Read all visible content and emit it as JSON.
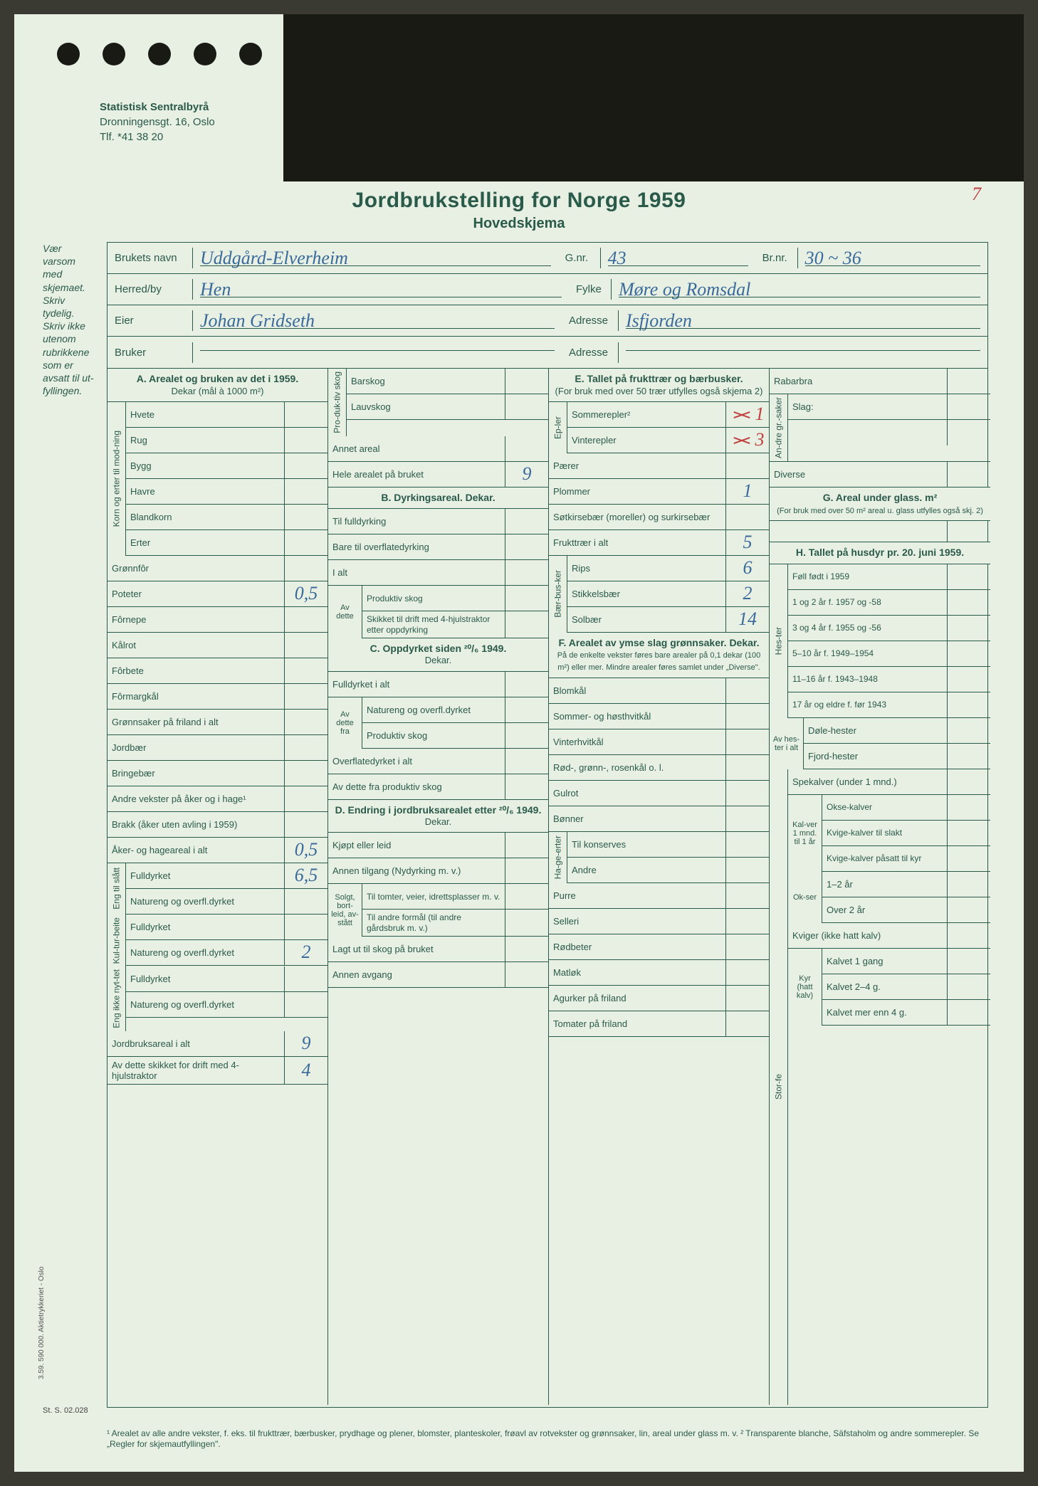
{
  "org": {
    "name": "Statistisk Sentralbyrå",
    "address": "Dronningensgt. 16, Oslo",
    "phone": "Tlf. *41 38 20"
  },
  "title": "Jordbrukstelling for Norge 1959",
  "subtitle": "Hovedskjema",
  "page_number": "7",
  "side_note": "Vær varsom med skjemaet.\nSkriv tydelig.\nSkriv ikke utenom rubrikkene som er avsatt til ut-fyllingen.",
  "header": {
    "brukets_navn_label": "Brukets navn",
    "brukets_navn": "Uddgård-Elverheim",
    "gnr_label": "G.nr.",
    "gnr": "43",
    "brnr_label": "Br.nr.",
    "brnr": "30 ~ 36",
    "herred_label": "Herred/by",
    "herred_strike": "by",
    "herred": "Hen",
    "fylke_label": "Fylke",
    "fylke": "Møre og Romsdal",
    "eier_label": "Eier",
    "eier": "Johan Gridseth",
    "adresse_label": "Adresse",
    "adresse": "Isfjorden",
    "bruker_label": "Bruker",
    "bruker": "",
    "adresse2_label": "Adresse",
    "adresse2": ""
  },
  "A": {
    "title": "A. Arealet og bruken av det i 1959.",
    "sub": "Dekar (mål à 1000 m²)",
    "korn_label": "Korn og erter til mod-ning",
    "rows": [
      {
        "l": "Hvete",
        "v": ""
      },
      {
        "l": "Rug",
        "v": ""
      },
      {
        "l": "Bygg",
        "v": ""
      },
      {
        "l": "Havre",
        "v": ""
      },
      {
        "l": "Blandkorn",
        "v": ""
      },
      {
        "l": "Erter",
        "v": ""
      }
    ],
    "rows2": [
      {
        "l": "Grønnfôr",
        "v": ""
      },
      {
        "l": "Poteter",
        "v": "0,5"
      },
      {
        "l": "Fôrnepe",
        "v": ""
      },
      {
        "l": "Kålrot",
        "v": ""
      },
      {
        "l": "Fôrbete",
        "v": ""
      },
      {
        "l": "Fôrmargkål",
        "v": ""
      },
      {
        "l": "Grønnsaker på friland i alt",
        "v": ""
      },
      {
        "l": "Jordbær",
        "v": ""
      },
      {
        "l": "Bringebær",
        "v": ""
      },
      {
        "l": "Andre vekster på åker og i hage¹",
        "v": ""
      },
      {
        "l": "Brakk (åker uten avling i 1959)",
        "v": ""
      },
      {
        "l": "Åker- og hageareal i alt",
        "v": "0,5"
      }
    ],
    "eng_label": "Eng til slått",
    "eng_rows": [
      {
        "l": "Fulldyrket",
        "v": "6,5"
      },
      {
        "l": "Natureng og overfl.dyrket",
        "v": ""
      }
    ],
    "kultur_label": "Kul-tur-beite",
    "kultur_rows": [
      {
        "l": "Fulldyrket",
        "v": ""
      },
      {
        "l": "Natureng og overfl.dyrket",
        "v": "2"
      }
    ],
    "engikke_label": "Eng ikke nyt-tet",
    "engikke_rows": [
      {
        "l": "Fulldyrket",
        "v": ""
      },
      {
        "l": "Natureng og overfl.dyrket",
        "v": ""
      }
    ],
    "total_rows": [
      {
        "l": "Jordbruksareal i alt",
        "v": "9"
      },
      {
        "l": "Av dette skikket for drift med 4-hjulstraktor",
        "v": "4"
      }
    ]
  },
  "col2": {
    "prod_label": "Pro-duk-tiv skog",
    "prod_rows": [
      {
        "l": "Barskog",
        "v": ""
      },
      {
        "l": "Lauvskog",
        "v": ""
      }
    ],
    "annet": {
      "l": "Annet areal",
      "v": ""
    },
    "hele": {
      "l": "Hele arealet på bruket",
      "v": "9"
    },
    "B_title": "B. Dyrkingsareal. Dekar.",
    "B_rows": [
      {
        "l": "Til fulldyrking",
        "v": ""
      },
      {
        "l": "Bare til overflatedyrking",
        "v": ""
      },
      {
        "l": "I alt",
        "v": ""
      }
    ],
    "avdette_label": "Av dette",
    "avdette_rows": [
      {
        "l": "Produktiv skog",
        "v": ""
      },
      {
        "l": "Skikket til drift med 4-hjulstraktor etter oppdyrking",
        "v": ""
      }
    ],
    "C_title": "C. Oppdyrket siden ²⁰/₆ 1949.",
    "C_sub": "Dekar.",
    "C_rows": [
      {
        "l": "Fulldyrket i alt",
        "v": ""
      }
    ],
    "C_avdette_label": "Av dette fra",
    "C_avdette_rows": [
      {
        "l": "Natureng og overfl.dyrket",
        "v": ""
      },
      {
        "l": "Produktiv skog",
        "v": ""
      }
    ],
    "C_rows2": [
      {
        "l": "Overflatedyrket i alt",
        "v": ""
      },
      {
        "l": "Av dette fra produktiv skog",
        "v": ""
      }
    ],
    "D_title": "D. Endring i jordbruksarealet etter ²⁰/₆ 1949.",
    "D_sub": "Dekar.",
    "D_rows": [
      {
        "l": "Kjøpt eller leid",
        "v": ""
      },
      {
        "l": "Annen tilgang (Nydyrking m. v.)",
        "v": ""
      }
    ],
    "solgt_label": "Solgt, bort-leid, av-stått",
    "solgt_rows": [
      {
        "l": "Til tomter, veier, idrettsplasser m. v.",
        "v": ""
      },
      {
        "l": "Til andre formål (til andre gårdsbruk m. v.)",
        "v": ""
      }
    ],
    "D_rows2": [
      {
        "l": "Lagt ut til skog på bruket",
        "v": ""
      },
      {
        "l": "Annen avgang",
        "v": ""
      }
    ]
  },
  "E": {
    "title": "E. Tallet på frukttrær og bærbusker.",
    "sub": "(For bruk med over 50 trær utfylles også skjema 2)",
    "epler_label": "Ep-ler",
    "epler_rows": [
      {
        "l": "Sommerepler²",
        "v": "1",
        "x": true
      },
      {
        "l": "Vinterepler",
        "v": "3",
        "x": true
      }
    ],
    "rows": [
      {
        "l": "Pærer",
        "v": ""
      },
      {
        "l": "Plommer",
        "v": "1"
      },
      {
        "l": "Søtkirsebær (moreller) og surkirsebær",
        "v": ""
      },
      {
        "l": "Frukttrær i alt",
        "v": "5"
      }
    ],
    "baer_label": "Bær-bus-ker",
    "baer_rows": [
      {
        "l": "Rips",
        "v": "6"
      },
      {
        "l": "Stikkelsbær",
        "v": "2"
      },
      {
        "l": "Solbær",
        "v": "14"
      }
    ]
  },
  "F": {
    "title": "F. Arealet av ymse slag grønnsaker. Dekar.",
    "sub": "På de enkelte vekster føres bare arealer på 0,1 dekar (100 m²) eller mer. Mindre arealer føres samlet under „Diverse\".",
    "rows": [
      {
        "l": "Blomkål",
        "v": ""
      },
      {
        "l": "Sommer- og høsthvitkål",
        "v": ""
      },
      {
        "l": "Vinterhvitkål",
        "v": ""
      },
      {
        "l": "Rød-, grønn-, rosenkål o. l.",
        "v": ""
      },
      {
        "l": "Gulrot",
        "v": ""
      },
      {
        "l": "Bønner",
        "v": ""
      }
    ],
    "hage_label": "Ha-ge-erter",
    "hage_rows": [
      {
        "l": "Til konserves",
        "v": ""
      },
      {
        "l": "Andre",
        "v": ""
      }
    ],
    "rows2": [
      {
        "l": "Purre",
        "v": ""
      },
      {
        "l": "Selleri",
        "v": ""
      },
      {
        "l": "Rødbeter",
        "v": ""
      },
      {
        "l": "Matløk",
        "v": ""
      },
      {
        "l": "Agurker på friland",
        "v": ""
      },
      {
        "l": "Tomater på friland",
        "v": ""
      }
    ]
  },
  "col4": {
    "rabarbra": {
      "l": "Rabarbra",
      "v": ""
    },
    "andre_label": "An-dre gr.-saker",
    "slag": "Slag:",
    "diverse": {
      "l": "Diverse",
      "v": ""
    },
    "G_title": "G. Areal under glass. m²",
    "G_sub": "(For bruk med over 50 m² areal u. glass utfylles også skj. 2)",
    "H_title": "H. Tallet på husdyr pr. 20. juni 1959.",
    "hester_label": "Hes-ter",
    "hester_rows": [
      {
        "l": "Føll født i 1959",
        "v": ""
      },
      {
        "l": "1 og 2 år f. 1957 og -58",
        "v": ""
      },
      {
        "l": "3 og 4 år f. 1955 og -56",
        "v": ""
      },
      {
        "l": "5–10 år f. 1949–1954",
        "v": ""
      },
      {
        "l": "11–16 år f. 1943–1948",
        "v": ""
      },
      {
        "l": "17 år og eldre f. før 1943",
        "v": ""
      }
    ],
    "avhester_label": "Av hes-ter i alt",
    "avhester_rows": [
      {
        "l": "Døle-hester",
        "v": ""
      },
      {
        "l": "Fjord-hester",
        "v": ""
      }
    ],
    "storfe_label": "Stor-fe",
    "spekalver": {
      "l": "Spekalver (under 1 mnd.)",
      "v": ""
    },
    "kalver_label": "Kal-ver 1 mnd. til 1 år",
    "kalver_rows": [
      {
        "l": "Okse-kalver",
        "v": ""
      },
      {
        "l": "Kvige-kalver til slakt",
        "v": ""
      },
      {
        "l": "Kvige-kalver påsatt til kyr",
        "v": ""
      }
    ],
    "okser_label": "Ok-ser",
    "okser_rows": [
      {
        "l": "1–2 år",
        "v": ""
      },
      {
        "l": "Over 2 år",
        "v": ""
      }
    ],
    "kviger": {
      "l": "Kviger (ikke hatt kalv)",
      "v": ""
    },
    "kyr_label": "Kyr (hatt kalv)",
    "kyr_rows": [
      {
        "l": "Kalvet 1 gang",
        "v": ""
      },
      {
        "l": "Kalvet 2–4 g.",
        "v": ""
      },
      {
        "l": "Kalvet mer enn 4 g.",
        "v": ""
      }
    ]
  },
  "footnote": "¹ Arealet av alle andre vekster, f. eks. til frukttrær, bærbusker, prydhage og plener, blomster, planteskoler, frøavl av rotvekster og grønnsaker, lin, areal under glass m. v. ² Transparente blanche, Säfstaholm og andre sommerepler. Se „Regler for skjemautfyllingen\".",
  "vert_print": "3.59. 590 000. Aktietrykkeriet - Oslo",
  "stcode": "St. S. 02.028",
  "colors": {
    "paper": "#e8f0e4",
    "ink": "#2a5a4a",
    "pen_blue": "#3a6a9a",
    "pen_red": "#c04040",
    "bg": "#3a3a32"
  }
}
